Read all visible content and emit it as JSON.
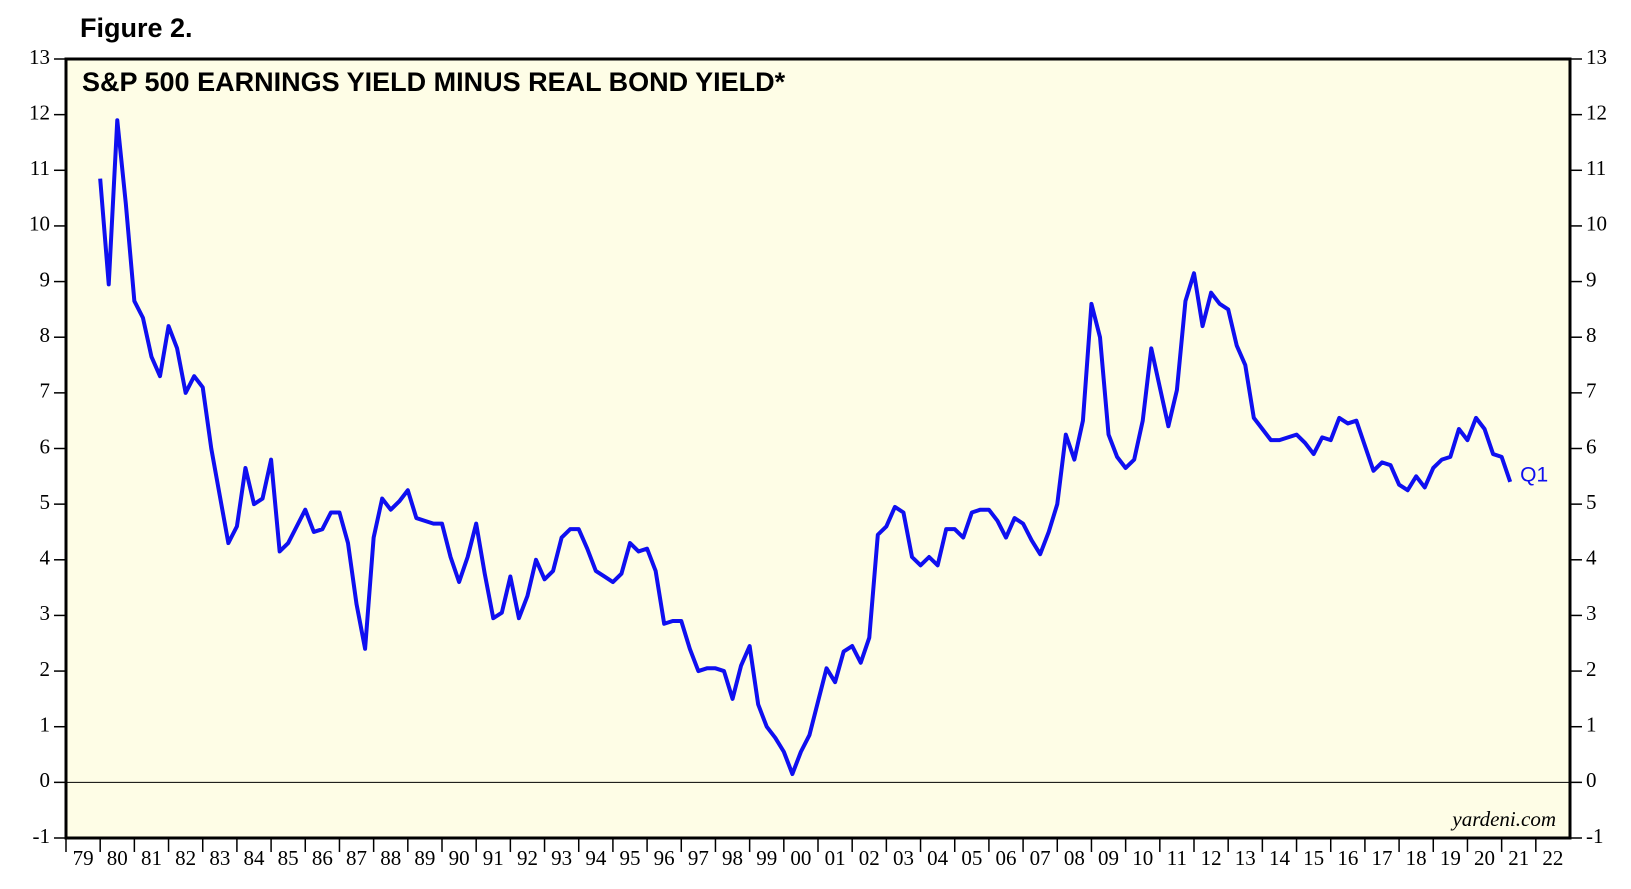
{
  "chart_data": {
    "type": "line",
    "figure_label": "Figure 2.",
    "title": "S&P 500 EARNINGS YIELD MINUS REAL BOND YIELD*",
    "source": "yardeni.com",
    "annotation": "Q1",
    "background": "#fefde6",
    "zero_line": true,
    "xlim": [
      1979,
      2023
    ],
    "xticks": [
      {
        "value": 1979,
        "label": "79"
      },
      {
        "value": 1980,
        "label": "80"
      },
      {
        "value": 1981,
        "label": "81"
      },
      {
        "value": 1982,
        "label": "82"
      },
      {
        "value": 1983,
        "label": "83"
      },
      {
        "value": 1984,
        "label": "84"
      },
      {
        "value": 1985,
        "label": "85"
      },
      {
        "value": 1986,
        "label": "86"
      },
      {
        "value": 1987,
        "label": "87"
      },
      {
        "value": 1988,
        "label": "88"
      },
      {
        "value": 1989,
        "label": "89"
      },
      {
        "value": 1990,
        "label": "90"
      },
      {
        "value": 1991,
        "label": "91"
      },
      {
        "value": 1992,
        "label": "92"
      },
      {
        "value": 1993,
        "label": "93"
      },
      {
        "value": 1994,
        "label": "94"
      },
      {
        "value": 1995,
        "label": "95"
      },
      {
        "value": 1996,
        "label": "96"
      },
      {
        "value": 1997,
        "label": "97"
      },
      {
        "value": 1998,
        "label": "98"
      },
      {
        "value": 1999,
        "label": "99"
      },
      {
        "value": 2000,
        "label": "00"
      },
      {
        "value": 2001,
        "label": "01"
      },
      {
        "value": 2002,
        "label": "02"
      },
      {
        "value": 2003,
        "label": "03"
      },
      {
        "value": 2004,
        "label": "04"
      },
      {
        "value": 2005,
        "label": "05"
      },
      {
        "value": 2006,
        "label": "06"
      },
      {
        "value": 2007,
        "label": "07"
      },
      {
        "value": 2008,
        "label": "08"
      },
      {
        "value": 2009,
        "label": "09"
      },
      {
        "value": 2010,
        "label": "10"
      },
      {
        "value": 2011,
        "label": "11"
      },
      {
        "value": 2012,
        "label": "12"
      },
      {
        "value": 2013,
        "label": "13"
      },
      {
        "value": 2014,
        "label": "14"
      },
      {
        "value": 2015,
        "label": "15"
      },
      {
        "value": 2016,
        "label": "16"
      },
      {
        "value": 2017,
        "label": "17"
      },
      {
        "value": 2018,
        "label": "18"
      },
      {
        "value": 2019,
        "label": "19"
      },
      {
        "value": 2020,
        "label": "20"
      },
      {
        "value": 2021,
        "label": "21"
      },
      {
        "value": 2022,
        "label": "22"
      }
    ],
    "ylim": [
      -1,
      13
    ],
    "yticks": [
      -1,
      0,
      1,
      2,
      3,
      4,
      5,
      6,
      7,
      8,
      9,
      10,
      11,
      12,
      13
    ],
    "y2lim": [
      -1,
      13
    ],
    "y2ticks": [
      -1,
      0,
      1,
      2,
      3,
      4,
      5,
      6,
      7,
      8,
      9,
      10,
      11,
      12,
      13
    ],
    "x": [
      1980,
      1980.25,
      1980.5,
      1980.75,
      1981,
      1981.25,
      1981.5,
      1981.75,
      1982,
      1982.25,
      1982.5,
      1982.75,
      1983,
      1983.25,
      1983.5,
      1983.75,
      1984,
      1984.25,
      1984.5,
      1984.75,
      1985,
      1985.25,
      1985.5,
      1985.75,
      1986,
      1986.25,
      1986.5,
      1986.75,
      1987,
      1987.25,
      1987.5,
      1987.75,
      1988,
      1988.25,
      1988.5,
      1988.75,
      1989,
      1989.25,
      1989.5,
      1989.75,
      1990,
      1990.25,
      1990.5,
      1990.75,
      1991,
      1991.25,
      1991.5,
      1991.75,
      1992,
      1992.25,
      1992.5,
      1992.75,
      1993,
      1993.25,
      1993.5,
      1993.75,
      1994,
      1994.25,
      1994.5,
      1994.75,
      1995,
      1995.25,
      1995.5,
      1995.75,
      1996,
      1996.25,
      1996.5,
      1996.75,
      1997,
      1997.25,
      1997.5,
      1997.75,
      1998,
      1998.25,
      1998.5,
      1998.75,
      1999,
      1999.25,
      1999.5,
      1999.75,
      2000,
      2000.25,
      2000.5,
      2000.75,
      2001,
      2001.25,
      2001.5,
      2001.75,
      2002,
      2002.25,
      2002.5,
      2002.75,
      2003,
      2003.25,
      2003.5,
      2003.75,
      2004,
      2004.25,
      2004.5,
      2004.75,
      2005,
      2005.25,
      2005.5,
      2005.75,
      2006,
      2006.25,
      2006.5,
      2006.75,
      2007,
      2007.25,
      2007.5,
      2007.75,
      2008,
      2008.25,
      2008.5,
      2008.75,
      2009,
      2009.25,
      2009.5,
      2009.75,
      2010,
      2010.25,
      2010.5,
      2010.75,
      2011,
      2011.25,
      2011.5,
      2011.75,
      2012,
      2012.25,
      2012.5,
      2012.75,
      2013,
      2013.25,
      2013.5,
      2013.75,
      2014,
      2014.25,
      2014.5,
      2014.75,
      2015,
      2015.25,
      2015.5,
      2015.75,
      2016,
      2016.25,
      2016.5,
      2016.75,
      2017,
      2017.25,
      2017.5,
      2017.75,
      2018,
      2018.25,
      2018.5,
      2018.75,
      2019,
      2019.25,
      2019.5,
      2019.75,
      2020,
      2020.25,
      2020.5,
      2020.75,
      2021,
      2021.25
    ],
    "series": [
      {
        "color": "#0f0ff0",
        "values": [
          10.85,
          8.95,
          11.9,
          10.4,
          8.65,
          8.35,
          7.65,
          7.3,
          8.2,
          7.8,
          7.0,
          7.3,
          7.1,
          6.0,
          5.15,
          4.3,
          4.6,
          5.65,
          5.0,
          5.1,
          5.8,
          4.15,
          4.3,
          4.6,
          4.9,
          4.5,
          4.55,
          4.85,
          4.85,
          4.3,
          3.2,
          2.4,
          4.4,
          5.1,
          4.9,
          5.05,
          5.25,
          4.75,
          4.7,
          4.65,
          4.65,
          4.05,
          3.6,
          4.05,
          4.65,
          3.75,
          2.95,
          3.05,
          3.7,
          2.95,
          3.35,
          4.0,
          3.65,
          3.8,
          4.4,
          4.55,
          4.55,
          4.2,
          3.8,
          3.7,
          3.6,
          3.75,
          4.3,
          4.15,
          4.2,
          3.8,
          2.85,
          2.9,
          2.9,
          2.4,
          2.0,
          2.05,
          2.05,
          2.0,
          1.5,
          2.1,
          2.45,
          1.4,
          1.0,
          0.8,
          0.55,
          0.15,
          0.55,
          0.85,
          1.45,
          2.05,
          1.8,
          2.35,
          2.45,
          2.15,
          2.6,
          4.45,
          4.6,
          4.95,
          4.85,
          4.05,
          3.9,
          4.05,
          3.9,
          4.55,
          4.55,
          4.4,
          4.85,
          4.9,
          4.9,
          4.7,
          4.4,
          4.75,
          4.65,
          4.35,
          4.1,
          4.5,
          5.0,
          6.25,
          5.8,
          6.5,
          8.6,
          8.0,
          6.25,
          5.85,
          5.65,
          5.8,
          6.5,
          7.8,
          7.1,
          6.4,
          7.05,
          8.65,
          9.15,
          8.2,
          8.8,
          8.6,
          8.5,
          7.85,
          7.5,
          6.55,
          6.35,
          6.15,
          6.15,
          6.2,
          6.25,
          6.1,
          5.9,
          6.2,
          6.15,
          6.55,
          6.45,
          6.5,
          6.05,
          5.6,
          5.75,
          5.7,
          5.35,
          5.25,
          5.5,
          5.3,
          5.65,
          5.8,
          5.85,
          6.35,
          6.15,
          6.55,
          6.35,
          5.9,
          5.85,
          5.4
        ]
      }
    ]
  }
}
